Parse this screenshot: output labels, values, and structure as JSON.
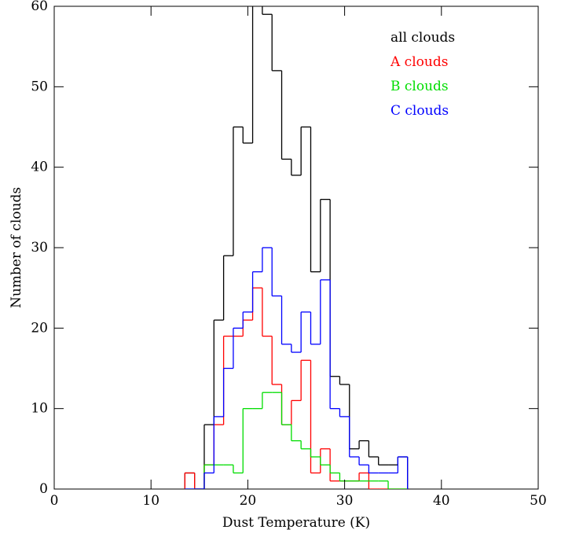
{
  "chart_data": {
    "type": "histogram",
    "xlabel": "Dust Temperature (K)",
    "ylabel": "Number of clouds",
    "bins": [
      13.5,
      14.5,
      15.5,
      16.5,
      17.5,
      18.5,
      19.5,
      20.5,
      21.5,
      22.5,
      23.5,
      24.5,
      25.5,
      26.5,
      27.5,
      28.5,
      29.5,
      30.5,
      31.5,
      32.5,
      33.5,
      34.5,
      35.5,
      36.5
    ],
    "series": [
      {
        "name": "all clouds",
        "color": "#000000",
        "values": [
          2,
          0,
          8,
          21,
          29,
          45,
          43,
          62,
          59,
          52,
          41,
          39,
          45,
          27,
          36,
          14,
          13,
          5,
          6,
          4,
          3,
          3,
          4
        ]
      },
      {
        "name": "A clouds",
        "color": "#ff0000",
        "values": [
          2,
          0,
          3,
          8,
          19,
          19,
          21,
          25,
          19,
          13,
          8,
          11,
          16,
          2,
          5,
          1,
          1,
          1,
          2,
          0,
          0,
          0,
          0
        ]
      },
      {
        "name": "B clouds",
        "color": "#00dd00",
        "values": [
          0,
          0,
          3,
          3,
          3,
          2,
          10,
          10,
          12,
          12,
          8,
          6,
          5,
          4,
          3,
          2,
          1,
          1,
          1,
          1,
          1,
          0,
          0
        ]
      },
      {
        "name": "C clouds",
        "color": "#0000ff",
        "values": [
          0,
          0,
          2,
          9,
          15,
          20,
          22,
          27,
          30,
          24,
          18,
          17,
          22,
          18,
          26,
          10,
          9,
          4,
          3,
          2,
          2,
          2,
          4
        ]
      }
    ],
    "xlim": [
      0,
      50
    ],
    "ylim": [
      0,
      60
    ],
    "xticks": [
      0,
      10,
      20,
      30,
      40,
      50
    ],
    "yticks": [
      0,
      10,
      20,
      30,
      40,
      50,
      60
    ],
    "legend": "upper right"
  }
}
